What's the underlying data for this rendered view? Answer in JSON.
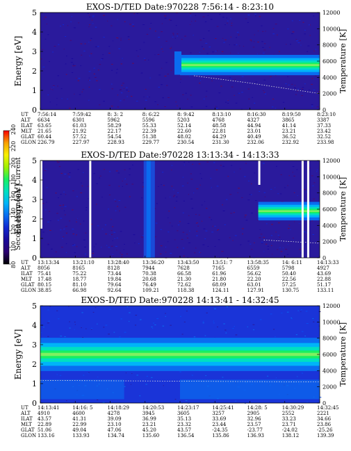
{
  "colorbar": {
    "label": "Second Harmonic Current",
    "ticks": [
      "80",
      "100",
      "120",
      "140",
      "160",
      "180",
      "200",
      "220",
      "240"
    ],
    "colors": [
      "#000000",
      "#2a0070",
      "#1a0a9a",
      "#1228d0",
      "#0a6cf0",
      "#00b4f8",
      "#00e0c0",
      "#18f060",
      "#a0f000",
      "#f8f000",
      "#f8a000",
      "#f80000"
    ]
  },
  "chart_data": [
    {
      "type": "heatmap",
      "title": "EXOS-D/TED  Date:970228  7:56:14 - 8:23:10",
      "ylabel": "Energy [eV]",
      "y2label": "Temperature [K]",
      "ylim": [
        0,
        5
      ],
      "yticks": [
        "0",
        "1",
        "2",
        "3",
        "4",
        "5"
      ],
      "y2lim": [
        0,
        12000
      ],
      "y2ticks": [
        "0",
        "2000",
        "4000",
        "6000",
        "8000",
        "10000",
        "12000"
      ],
      "band": {
        "start": 0.5,
        "center": 2.3,
        "width": 0.55,
        "edge_center": 2.3
      },
      "temperature_trace": {
        "x": [
          0.55,
          0.75,
          1.0
        ],
        "y": [
          4200,
          3300,
          2000
        ]
      },
      "table": {
        "row_labels": [
          "UT",
          "ALT",
          "ILAT",
          "MLT",
          "GLAT",
          "GLON"
        ],
        "columns": [
          [
            "7:56:14",
            "6634",
            "63.65",
            "21.65",
            "60.44",
            "226.79"
          ],
          [
            "7:59:42",
            "6301",
            "61.03",
            "21.92",
            "57.52",
            "227.97"
          ],
          [
            "8: 3: 2",
            "5962",
            "58.29",
            "22.17",
            "54.54",
            "228.93"
          ],
          [
            "8: 6:22",
            "5596",
            "55.33",
            "22.39",
            "51.38",
            "229.77"
          ],
          [
            "8: 9:42",
            "5203",
            "52.14",
            "22.60",
            "48.02",
            "230.54"
          ],
          [
            "8:13:10",
            "4768",
            "48.58",
            "22.81",
            "44.29",
            "231.30"
          ],
          [
            "8:16:30",
            "4327",
            "44.94",
            "23.01",
            "40.49",
            "232.06"
          ],
          [
            "8:19:50",
            "3865",
            "41.14",
            "23.21",
            "36.52",
            "232.92"
          ],
          [
            "8:23:10",
            "3387",
            "37.33",
            "23.42",
            "32.52",
            "233.98"
          ]
        ]
      }
    },
    {
      "type": "heatmap",
      "title": "EXOS-D/TED  Date:970228  13:13:34 - 14:13:33",
      "ylabel": "Energy [eV]",
      "y2label": "Temperature [K]",
      "ylim": [
        0,
        5
      ],
      "yticks": [
        "0",
        "1",
        "2",
        "3",
        "4",
        "5"
      ],
      "y2lim": [
        0,
        12000
      ],
      "y2ticks": [
        "0",
        "2000",
        "4000",
        "6000",
        "8000",
        "10000",
        "12000"
      ],
      "band": {
        "start": 0.78,
        "center": 2.4,
        "width": 0.5,
        "edge_center": 2.4
      },
      "temperature_trace": {
        "x": [
          0.8,
          1.0
        ],
        "y": [
          2200,
          1800
        ]
      },
      "table": {
        "row_labels": [
          "UT",
          "ALT",
          "ILAT",
          "MLT",
          "GLAT",
          "GLON"
        ],
        "columns": [
          [
            "13:13:34",
            "8056",
            "75.41",
            "17.48",
            "80.15",
            "38.85"
          ],
          [
            "13:21:10",
            "8165",
            "75.22",
            "18.77",
            "81.10",
            "66.98"
          ],
          [
            "13:28:40",
            "8128",
            "73.44",
            "19.84",
            "79.64",
            "92.64"
          ],
          [
            "13:36:20",
            "7944",
            "70.38",
            "20.68",
            "76.49",
            "109.21"
          ],
          [
            "13:43:50",
            "7628",
            "66.58",
            "21.30",
            "72.62",
            "118.38"
          ],
          [
            "13:51: 7",
            "7165",
            "61.96",
            "21.80",
            "68.09",
            "124.11"
          ],
          [
            "13:58:35",
            "6559",
            "56.62",
            "22.20",
            "63.01",
            "127.91"
          ],
          [
            "14: 6:11",
            "5798",
            "50.40",
            "22.56",
            "57.25",
            "130.75"
          ],
          [
            "14:13:33",
            "4927",
            "43.69",
            "22.88",
            "51.17",
            "133.11"
          ]
        ]
      }
    },
    {
      "type": "heatmap",
      "title": "EXOS-D/TED  Date:970228  14:13:41 - 14:32:45",
      "ylabel": "Energy [eV]",
      "y2label": "Temperature [K]",
      "ylim": [
        0,
        5
      ],
      "yticks": [
        "0",
        "1",
        "2",
        "3",
        "4",
        "5"
      ],
      "y2lim": [
        0,
        12000
      ],
      "y2ticks": [
        "0",
        "2000",
        "4000",
        "6000",
        "8000",
        "10000",
        "12000"
      ],
      "band": {
        "start": 0.0,
        "center": 2.5,
        "width": 0.9,
        "edge_center": 2.5
      },
      "temperature_trace": {
        "x": [
          0.0,
          0.5,
          1.0
        ],
        "y": [
          2800,
          2700,
          2600
        ]
      },
      "table": {
        "row_labels": [
          "UT",
          "ALT",
          "ILAT",
          "MLT",
          "GLAT",
          "GLON"
        ],
        "columns": [
          [
            "14:13:41",
            "4910",
            "43.57",
            "22.89",
            "51.06",
            "133.16"
          ],
          [
            "14:16: 5",
            "4600",
            "41.31",
            "22.99",
            "49.04",
            "133.93"
          ],
          [
            "14:18:29",
            "4278",
            "39.09",
            "23.10",
            "47.06",
            "134.74"
          ],
          [
            "14:20:53",
            "3945",
            "36.99",
            "23.21",
            "45.20",
            "135.60"
          ],
          [
            "14:23:17",
            "3605",
            "35.13",
            "23.32",
            "43.57",
            "136.54"
          ],
          [
            "14:25:41",
            "3257",
            "33.69",
            "23.44",
            "-24.35",
            "135.86"
          ],
          [
            "14:28: 5",
            "2905",
            "32.96",
            "23.57",
            "-23.77",
            "136.93"
          ],
          [
            "14:30:29",
            "2552",
            "33.23",
            "23.71",
            "-24.02",
            "138.12"
          ],
          [
            "14:32:45",
            "2221",
            "34.66",
            "23.86",
            "-25.26",
            "139.39"
          ]
        ]
      }
    }
  ]
}
